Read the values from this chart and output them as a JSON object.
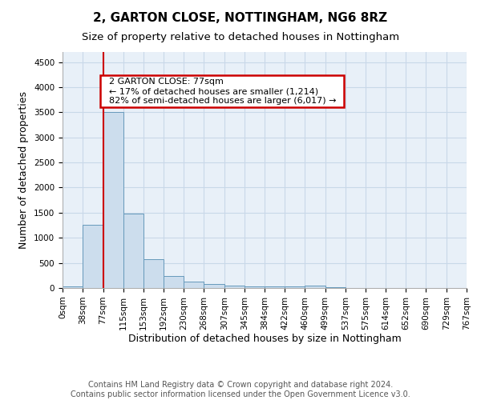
{
  "title": "2, GARTON CLOSE, NOTTINGHAM, NG6 8RZ",
  "subtitle": "Size of property relative to detached houses in Nottingham",
  "xlabel": "Distribution of detached houses by size in Nottingham",
  "ylabel": "Number of detached properties",
  "footnote1": "Contains HM Land Registry data © Crown copyright and database right 2024.",
  "footnote2": "Contains public sector information licensed under the Open Government Licence v3.0.",
  "annotation_line1": "2 GARTON CLOSE: 77sqm",
  "annotation_line2": "← 17% of detached houses are smaller (1,214)",
  "annotation_line3": "82% of semi-detached houses are larger (6,017) →",
  "property_size": 77,
  "bar_edges": [
    0,
    38,
    77,
    115,
    153,
    192,
    230,
    268,
    307,
    345,
    384,
    422,
    460,
    499,
    537,
    575,
    614,
    652,
    690,
    729,
    767
  ],
  "bar_heights": [
    30,
    1260,
    3500,
    1480,
    575,
    245,
    120,
    80,
    45,
    30,
    30,
    30,
    50,
    10,
    0,
    0,
    0,
    0,
    0,
    0
  ],
  "bar_color": "#ccdded",
  "bar_edge_color": "#6699bb",
  "vline_color": "#cc0000",
  "vline_x": 77,
  "annotation_box_color": "#cc0000",
  "ylim_max": 4700,
  "yticks": [
    0,
    500,
    1000,
    1500,
    2000,
    2500,
    3000,
    3500,
    4000,
    4500
  ],
  "grid_color": "#c8d8e8",
  "background_color": "#e8f0f8",
  "title_fontsize": 11,
  "subtitle_fontsize": 9.5,
  "axis_label_fontsize": 9,
  "tick_fontsize": 7.5,
  "annotation_fontsize": 8,
  "footnote_fontsize": 7
}
